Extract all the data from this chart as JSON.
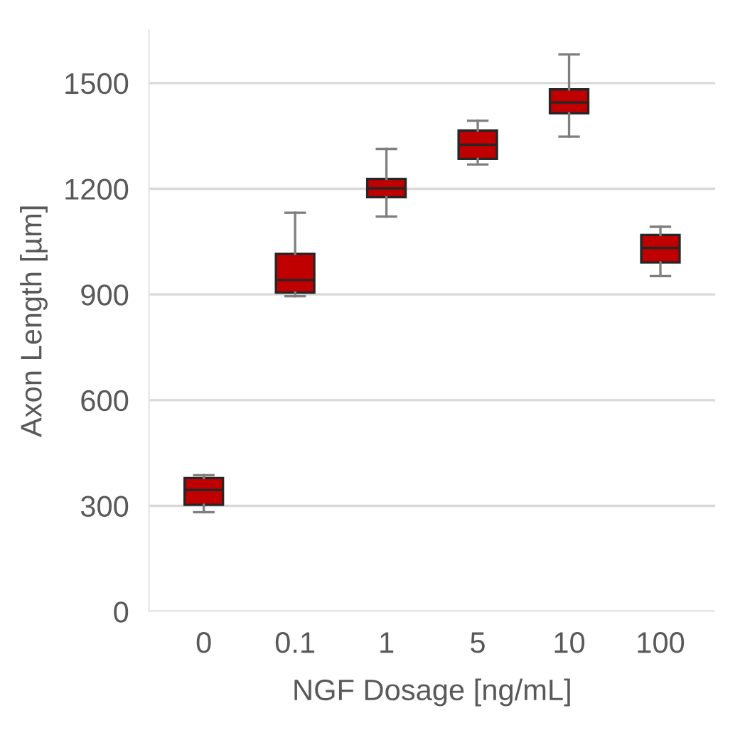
{
  "chart_data": {
    "type": "box",
    "xlabel": "NGF Dosage [ng/mL]",
    "ylabel": "Axon Length [µm]",
    "categories": [
      "0",
      "0.1",
      "1",
      "5",
      "10",
      "100"
    ],
    "color": "#c00000",
    "boxes": [
      {
        "low": 282,
        "q1": 303,
        "median": 345,
        "q3": 379,
        "high": 387
      },
      {
        "low": 895,
        "q1": 905,
        "median": 941,
        "q3": 1015,
        "high": 1132
      },
      {
        "low": 1121,
        "q1": 1176,
        "median": 1201,
        "q3": 1228,
        "high": 1313
      },
      {
        "low": 1269,
        "q1": 1285,
        "median": 1325,
        "q3": 1365,
        "high": 1393
      },
      {
        "low": 1348,
        "q1": 1414,
        "median": 1445,
        "q3": 1482,
        "high": 1581
      },
      {
        "low": 952,
        "q1": 991,
        "median": 1032,
        "q3": 1069,
        "high": 1092
      }
    ],
    "ylim": [
      0,
      1650
    ],
    "yticks": [
      0,
      300,
      600,
      900,
      1200,
      1500
    ],
    "grid": "y"
  }
}
